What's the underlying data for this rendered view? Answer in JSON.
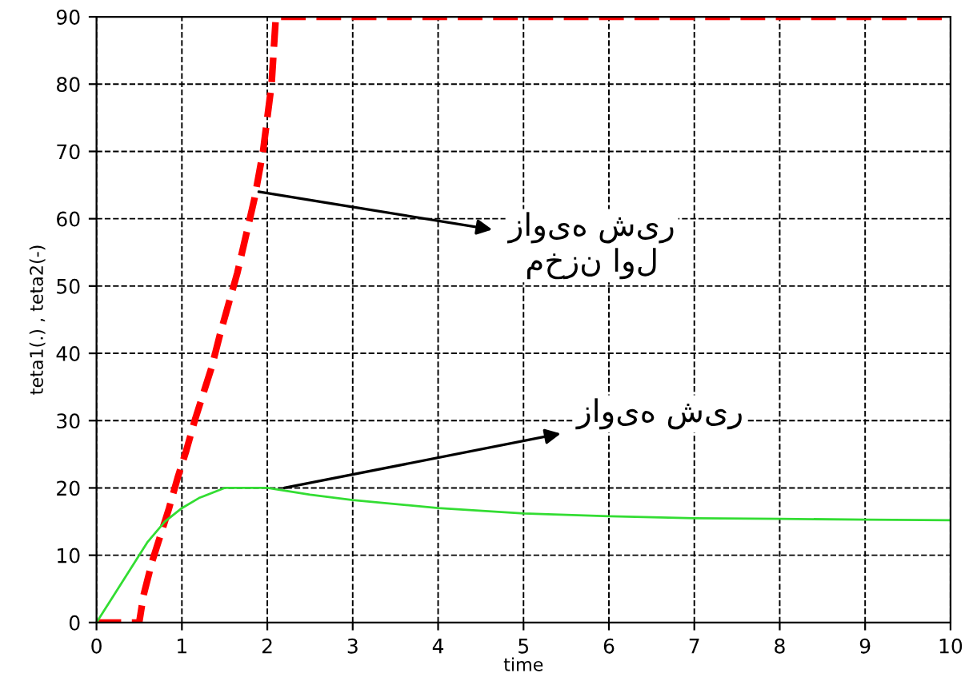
{
  "chart_data": {
    "type": "line",
    "xlabel": "time",
    "ylabel": "teta1(.) , teta2(-)",
    "xlim": [
      0,
      10
    ],
    "ylim": [
      0,
      90
    ],
    "xticks": [
      0,
      1,
      2,
      3,
      4,
      5,
      6,
      7,
      8,
      9,
      10
    ],
    "yticks": [
      0,
      10,
      20,
      30,
      40,
      50,
      60,
      70,
      80,
      90
    ],
    "grid": true,
    "legend": false,
    "series": [
      {
        "color": "#ff0000",
        "line_style": "dashed",
        "x": [
          0,
          0.5,
          0.55,
          0.65,
          0.75,
          0.85,
          0.95,
          1.05,
          1.15,
          1.25,
          1.35,
          1.45,
          1.55,
          1.65,
          1.75,
          1.85,
          1.95,
          2.05,
          2.1,
          10
        ],
        "values": [
          0,
          0,
          4,
          9,
          13,
          17,
          21.5,
          25.5,
          30,
          34,
          38,
          43,
          47.5,
          52,
          57.5,
          63,
          70,
          80,
          90,
          90
        ]
      },
      {
        "color": "#33dd33",
        "line_style": "solid",
        "x": [
          0,
          0.2,
          0.4,
          0.6,
          0.8,
          1.0,
          1.2,
          1.5,
          2.0,
          2.5,
          3,
          4,
          5,
          6,
          7,
          8,
          9,
          10
        ],
        "values": [
          0,
          4,
          8,
          12,
          15,
          17,
          18.5,
          20,
          20,
          19,
          18.2,
          17,
          16.2,
          15.8,
          15.5,
          15.4,
          15.3,
          15.2
        ]
      }
    ],
    "annotations": [
      {
        "text": "زاویه شیر\nمخزن اول",
        "x": 1.9,
        "y": 64
      },
      {
        "text": "زاویه شیر",
        "x": 2.2,
        "y": 20
      }
    ]
  }
}
